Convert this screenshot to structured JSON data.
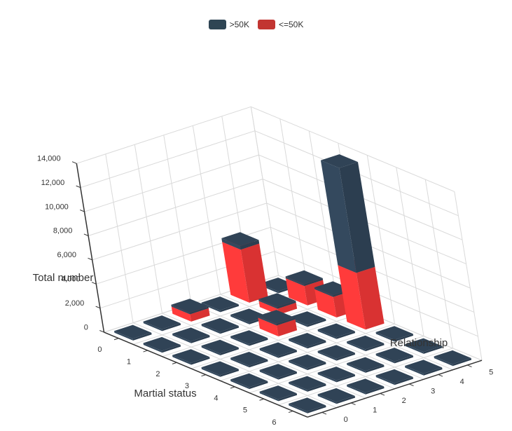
{
  "legend": [
    {
      "label": ">50K",
      "color": "#2f4554"
    },
    {
      "label": "<=50K",
      "color": "#c23531"
    }
  ],
  "chart_data": {
    "type": "bar3d",
    "x_axis": {
      "title": "Martial status",
      "categories": [
        "0",
        "1",
        "2",
        "3",
        "4",
        "5",
        "6"
      ]
    },
    "y_axis": {
      "title": "Relationship",
      "categories": [
        "0",
        "1",
        "2",
        "3",
        "4",
        "5"
      ]
    },
    "z_axis": {
      "title": "Total number",
      "ticks": [
        "0",
        "2,000",
        "4,000",
        "6,000",
        "8,000",
        "10,000",
        "12,000",
        "14,000"
      ],
      "range": [
        0,
        14000
      ]
    },
    "series": [
      {
        "name": "<=50K",
        "color": "#ff3b3b",
        "values": [
          [
            0,
            0,
            0,
            0,
            4400,
            0
          ],
          [
            0,
            0,
            0,
            0,
            500,
            0
          ],
          [
            0,
            0,
            0,
            0,
            900,
            0
          ],
          [
            0,
            0,
            0,
            0,
            0,
            4700
          ],
          [
            0,
            0,
            0,
            0,
            0,
            0
          ],
          [
            0,
            0,
            0,
            0,
            0,
            0
          ],
          [
            0,
            0,
            0,
            0,
            0,
            0
          ]
        ]
      },
      {
        "name": ">50K",
        "color": "#34495e",
        "values": [
          [
            0,
            0,
            0,
            0,
            300,
            0
          ],
          [
            0,
            0,
            0,
            0,
            0,
            0
          ],
          [
            0,
            0,
            0,
            0,
            0,
            0
          ],
          [
            0,
            0,
            0,
            0,
            0,
            0
          ],
          [
            0,
            0,
            0,
            0,
            0,
            0
          ],
          [
            0,
            0,
            0,
            0,
            0,
            0
          ],
          [
            0,
            0,
            0,
            0,
            0,
            0
          ]
        ]
      }
    ],
    "notes": [
      {
        "x": "2",
        "y": "1",
        "stack": [
          1600,
          0
        ]
      },
      {
        "x": "0",
        "y": "3",
        "stack": [
          0,
          0
        ]
      }
    ]
  }
}
